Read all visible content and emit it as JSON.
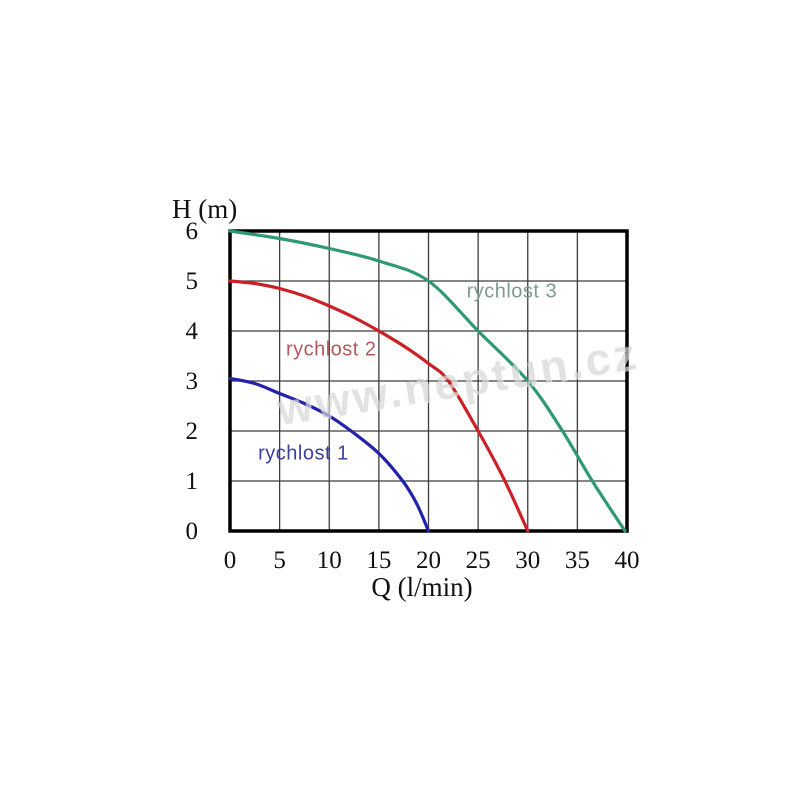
{
  "watermark": {
    "text": "www.neptun.cz"
  },
  "colors": {
    "background": "#ffffff",
    "plot_border": "#000000",
    "grid": "#3c3c3c",
    "text": "#111111"
  },
  "chart_data": {
    "type": "line",
    "title": "",
    "xlabel": "Q (l/min)",
    "ylabel": "H (m)",
    "xlim": [
      0,
      40
    ],
    "ylim": [
      0,
      6
    ],
    "x_ticks": [
      "0",
      "5",
      "10",
      "15",
      "20",
      "25",
      "30",
      "35",
      "40"
    ],
    "x_tick_values": [
      0,
      5,
      10,
      15,
      20,
      25,
      30,
      35,
      40
    ],
    "y_ticks": [
      "0",
      "1",
      "2",
      "3",
      "4",
      "5",
      "6"
    ],
    "y_tick_values": [
      0,
      1,
      2,
      3,
      4,
      5,
      6
    ],
    "grid": "on",
    "legend_position": "inline-annotations",
    "series": [
      {
        "name": "rychlost 1",
        "color": "#2222aa",
        "label_color": "#3c3f9c",
        "label_at": [
          7.4,
          1.55
        ],
        "points": [
          [
            0,
            3.05
          ],
          [
            2.5,
            2.95
          ],
          [
            5,
            2.75
          ],
          [
            7.5,
            2.55
          ],
          [
            10,
            2.3
          ],
          [
            12.2,
            2.0
          ],
          [
            15,
            1.55
          ],
          [
            17.4,
            1.0
          ],
          [
            18.8,
            0.55
          ],
          [
            20,
            0
          ]
        ]
      },
      {
        "name": "rychlost 2",
        "color": "#cc2026",
        "label_color": "#b5585e",
        "label_at": [
          10.2,
          3.62
        ],
        "points": [
          [
            0,
            5.0
          ],
          [
            2.5,
            4.95
          ],
          [
            5,
            4.85
          ],
          [
            7.5,
            4.7
          ],
          [
            10,
            4.5
          ],
          [
            12.5,
            4.27
          ],
          [
            15,
            4.0
          ],
          [
            17.5,
            3.7
          ],
          [
            20,
            3.35
          ],
          [
            22,
            3.0
          ],
          [
            25,
            2.0
          ],
          [
            27.7,
            1.0
          ],
          [
            30,
            0
          ]
        ]
      },
      {
        "name": "rychlost 3",
        "color": "#2f9972",
        "label_color": "#7d9c8d",
        "label_at": [
          28.4,
          4.78
        ],
        "points": [
          [
            0,
            6.0
          ],
          [
            5,
            5.85
          ],
          [
            10,
            5.65
          ],
          [
            15,
            5.4
          ],
          [
            20,
            5.0
          ],
          [
            25,
            4.0
          ],
          [
            30,
            3.0
          ],
          [
            33.5,
            2.0
          ],
          [
            36.5,
            1.0
          ],
          [
            39.8,
            0
          ]
        ]
      }
    ]
  }
}
